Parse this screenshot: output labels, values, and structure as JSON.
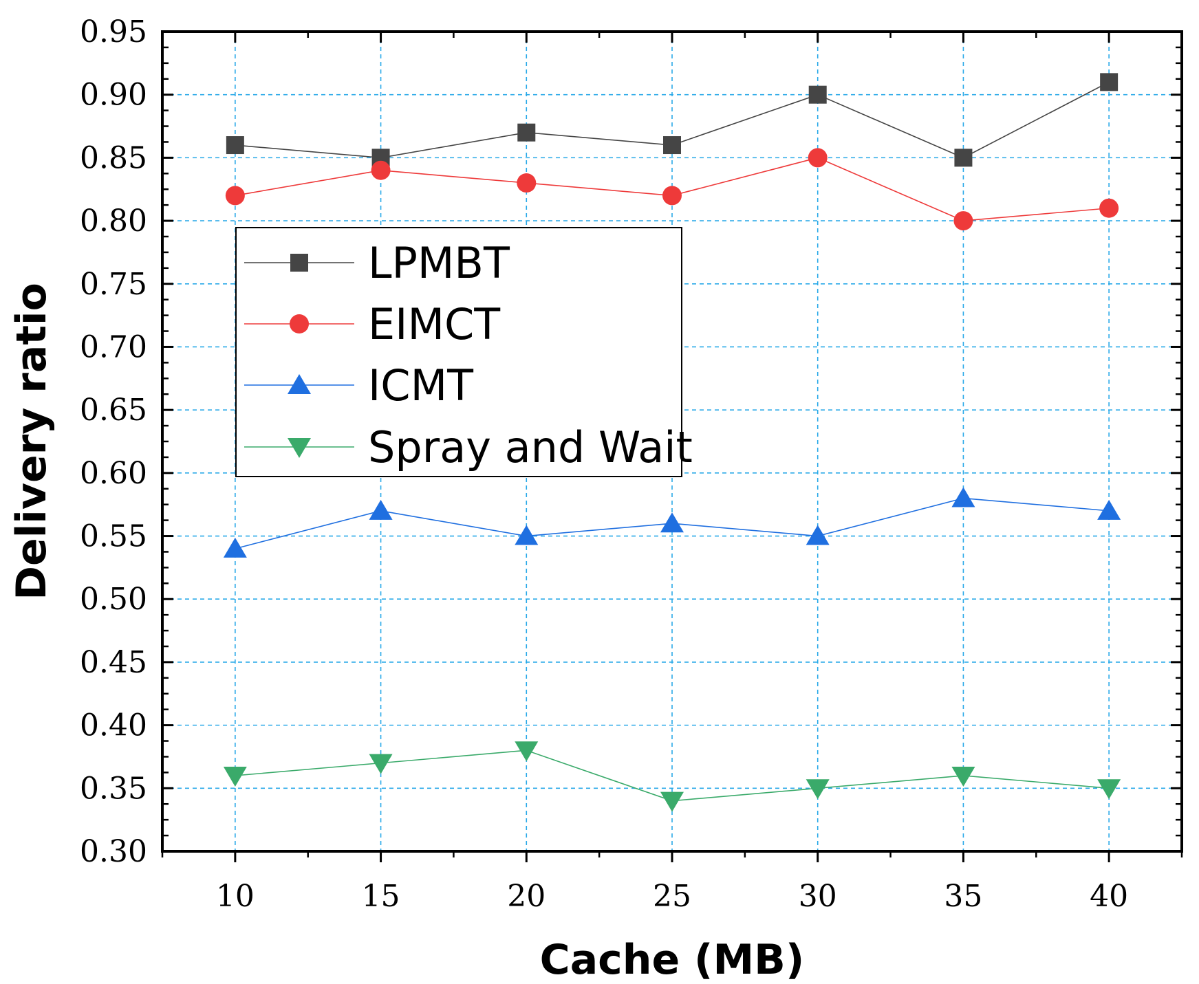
{
  "chart_data": {
    "type": "line",
    "title": "",
    "xlabel": "Cache (MB)",
    "ylabel": "Delivery ratio",
    "x": [
      10,
      15,
      20,
      25,
      30,
      35,
      40
    ],
    "xlim": [
      7.5,
      42.5
    ],
    "ylim": [
      0.3,
      0.95
    ],
    "xticks": [
      "10",
      "15",
      "20",
      "25",
      "30",
      "35",
      "40"
    ],
    "yticks": [
      "0.30",
      "0.35",
      "0.40",
      "0.45",
      "0.50",
      "0.55",
      "0.60",
      "0.65",
      "0.70",
      "0.75",
      "0.80",
      "0.85",
      "0.90",
      "0.95"
    ],
    "ytick_values": [
      0.3,
      0.35,
      0.4,
      0.45,
      0.5,
      0.55,
      0.6,
      0.65,
      0.7,
      0.75,
      0.8,
      0.85,
      0.9,
      0.95
    ],
    "grid": true,
    "legend_position": "upper-left",
    "series": [
      {
        "name": "LPMBT",
        "marker": "square",
        "color": "#454545",
        "values": [
          0.86,
          0.85,
          0.87,
          0.86,
          0.9,
          0.85,
          0.91
        ]
      },
      {
        "name": "EIMCT",
        "marker": "circle",
        "color": "#ee3a3a",
        "values": [
          0.82,
          0.84,
          0.83,
          0.82,
          0.85,
          0.8,
          0.81
        ]
      },
      {
        "name": "ICMT",
        "marker": "triangle-up",
        "color": "#1f6fe0",
        "values": [
          0.54,
          0.57,
          0.55,
          0.56,
          0.55,
          0.58,
          0.57
        ]
      },
      {
        "name": "Spray and Wait",
        "marker": "triangle-down",
        "color": "#3aaa6a",
        "values": [
          0.36,
          0.37,
          0.38,
          0.34,
          0.35,
          0.36,
          0.35
        ]
      }
    ]
  },
  "colors": {
    "grid": "#29a9e8",
    "axis": "#000000"
  }
}
